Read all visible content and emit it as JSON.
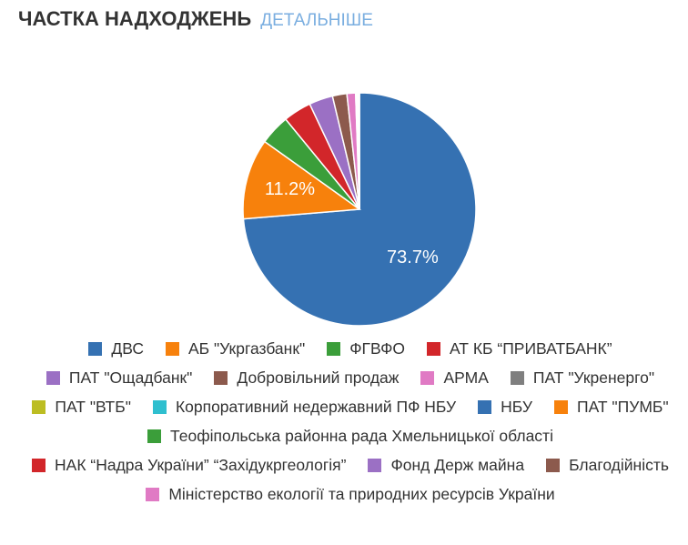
{
  "header": {
    "title": "ЧАСТКА НАДХОДЖЕНЬ",
    "link": "ДЕТАЛЬНІШЕ"
  },
  "chart_data": {
    "type": "pie",
    "categories": [
      "ДВС",
      "АБ \"Укргазбанк\"",
      "ФГВФО",
      "АТ КБ “ПРИВАТБАНК”",
      "ПАТ \"Ощадбанк\"",
      "Добровільний продаж",
      "АРМА",
      "ПАТ \"Укренерго\"",
      "ПАТ \"ВТБ\"",
      "Корпоративний недержавний ПФ НБУ",
      "НБУ",
      "ПАТ \"ПУМБ\"",
      "Теофіпольська районна рада Хмельницької області",
      "НАК “Надра України” “Західукргеологія”",
      "Фонд Держ майна",
      "Благодійність",
      "Міністерство екології та природних ресурсів України"
    ],
    "values": [
      73.7,
      11.2,
      4.2,
      3.9,
      3.3,
      2.0,
      1.2,
      0.1,
      0.1,
      0.1,
      0.05,
      0.05,
      0.04,
      0.03,
      0.03,
      0.02,
      0.01
    ],
    "value_labels": [
      "73.7%",
      "11.2%",
      null,
      null,
      null,
      null,
      null,
      null,
      null,
      null,
      null,
      null,
      null,
      null,
      null,
      null,
      null
    ],
    "colors": [
      "#3571b2",
      "#f7810c",
      "#3b9e3a",
      "#d2262a",
      "#9b70c4",
      "#8c5a4d",
      "#e07ac4",
      "#7f7f7f",
      "#bcbd22",
      "#2fbfcf",
      "#3571b2",
      "#f7810c",
      "#3b9e3a",
      "#d2262a",
      "#9b70c4",
      "#8c5a4d",
      "#e07ac4"
    ]
  }
}
